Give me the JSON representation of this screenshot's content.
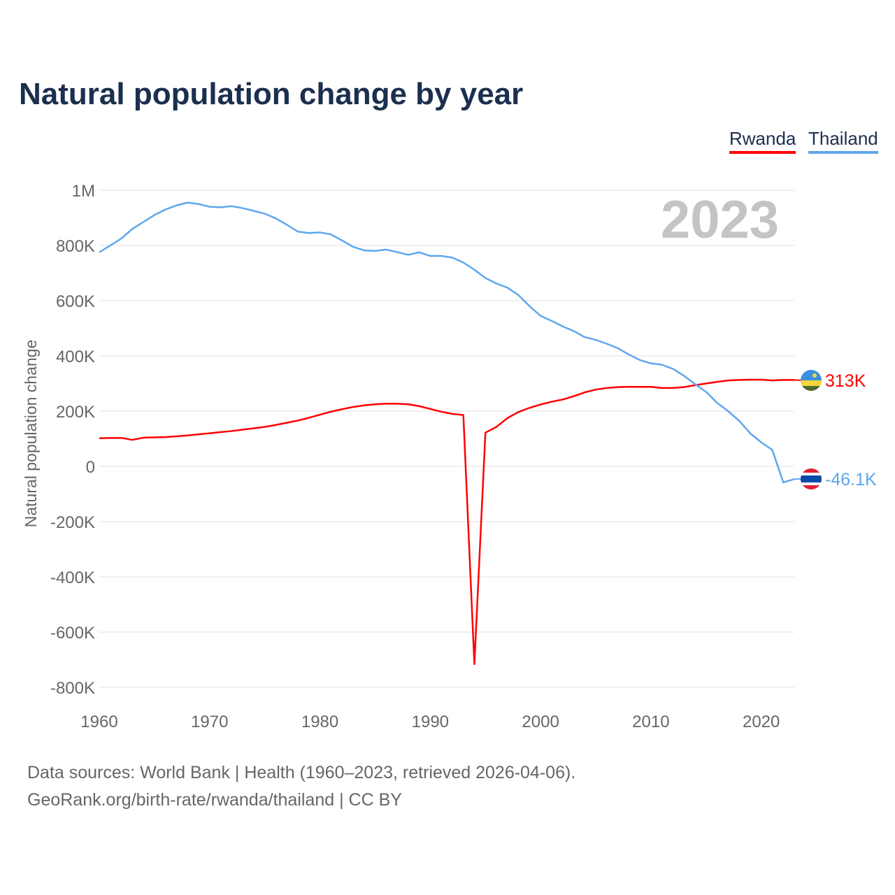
{
  "title": "Natural population change by year",
  "legend": [
    {
      "label": "Rwanda",
      "color": "#ff0000"
    },
    {
      "label": "Thailand",
      "color": "#5ea7ee"
    }
  ],
  "footer": {
    "line1": "Data sources: World Bank | Health (1960–2023, retrieved 2026-04-06).",
    "line2": "GeoRank.org/birth-rate/rwanda/thailand | CC BY"
  },
  "chart_data": {
    "type": "line",
    "title": "Natural population change by year",
    "xlabel": "",
    "ylabel": "Natural population change",
    "year_label": "2023",
    "xlim": [
      1960,
      2023
    ],
    "ylim": [
      -800000,
      1000000
    ],
    "x_ticks": [
      1960,
      1970,
      1980,
      1990,
      2000,
      2010,
      2020
    ],
    "y_ticks": [
      {
        "v": 1000000,
        "l": "1M"
      },
      {
        "v": 800000,
        "l": "800K"
      },
      {
        "v": 600000,
        "l": "600K"
      },
      {
        "v": 400000,
        "l": "400K"
      },
      {
        "v": 200000,
        "l": "200K"
      },
      {
        "v": 0,
        "l": "0"
      },
      {
        "v": -200000,
        "l": "-200K"
      },
      {
        "v": -400000,
        "l": "-400K"
      },
      {
        "v": -600000,
        "l": "-600K"
      },
      {
        "v": -800000,
        "l": "-800K"
      }
    ],
    "grid": true,
    "legend_position": "top-right",
    "x_start": 1960,
    "series": [
      {
        "name": "Rwanda",
        "color": "#ff0000",
        "end_label": "313K",
        "flag": "rwanda-flag",
        "values_k": [
          102,
          103,
          103,
          96,
          104,
          105,
          106,
          109,
          112,
          116,
          120,
          124,
          128,
          133,
          138,
          143,
          150,
          158,
          166,
          176,
          187,
          198,
          207,
          215,
          221,
          225,
          227,
          227,
          225,
          218,
          208,
          198,
          190,
          186,
          -716,
          122,
          143,
          175,
          197,
          212,
          224,
          234,
          242,
          254,
          268,
          278,
          284,
          287,
          288,
          288,
          288,
          284,
          284,
          287,
          294,
          300,
          306,
          311,
          313,
          314,
          314,
          311,
          313,
          313
        ]
      },
      {
        "name": "Thailand",
        "color": "#5ea7ee",
        "end_label": "-46.1K",
        "flag": "thailand-flag",
        "values_k": [
          775,
          800,
          825,
          860,
          885,
          910,
          930,
          945,
          955,
          950,
          940,
          938,
          942,
          935,
          925,
          915,
          898,
          875,
          850,
          845,
          847,
          840,
          818,
          795,
          782,
          780,
          785,
          776,
          766,
          775,
          762,
          762,
          756,
          738,
          712,
          682,
          662,
          647,
          620,
          580,
          545,
          527,
          507,
          490,
          468,
          458,
          444,
          428,
          405,
          385,
          373,
          368,
          353,
          328,
          298,
          270,
          230,
          200,
          165,
          120,
          87,
          60,
          -58,
          -46.1
        ]
      }
    ]
  }
}
